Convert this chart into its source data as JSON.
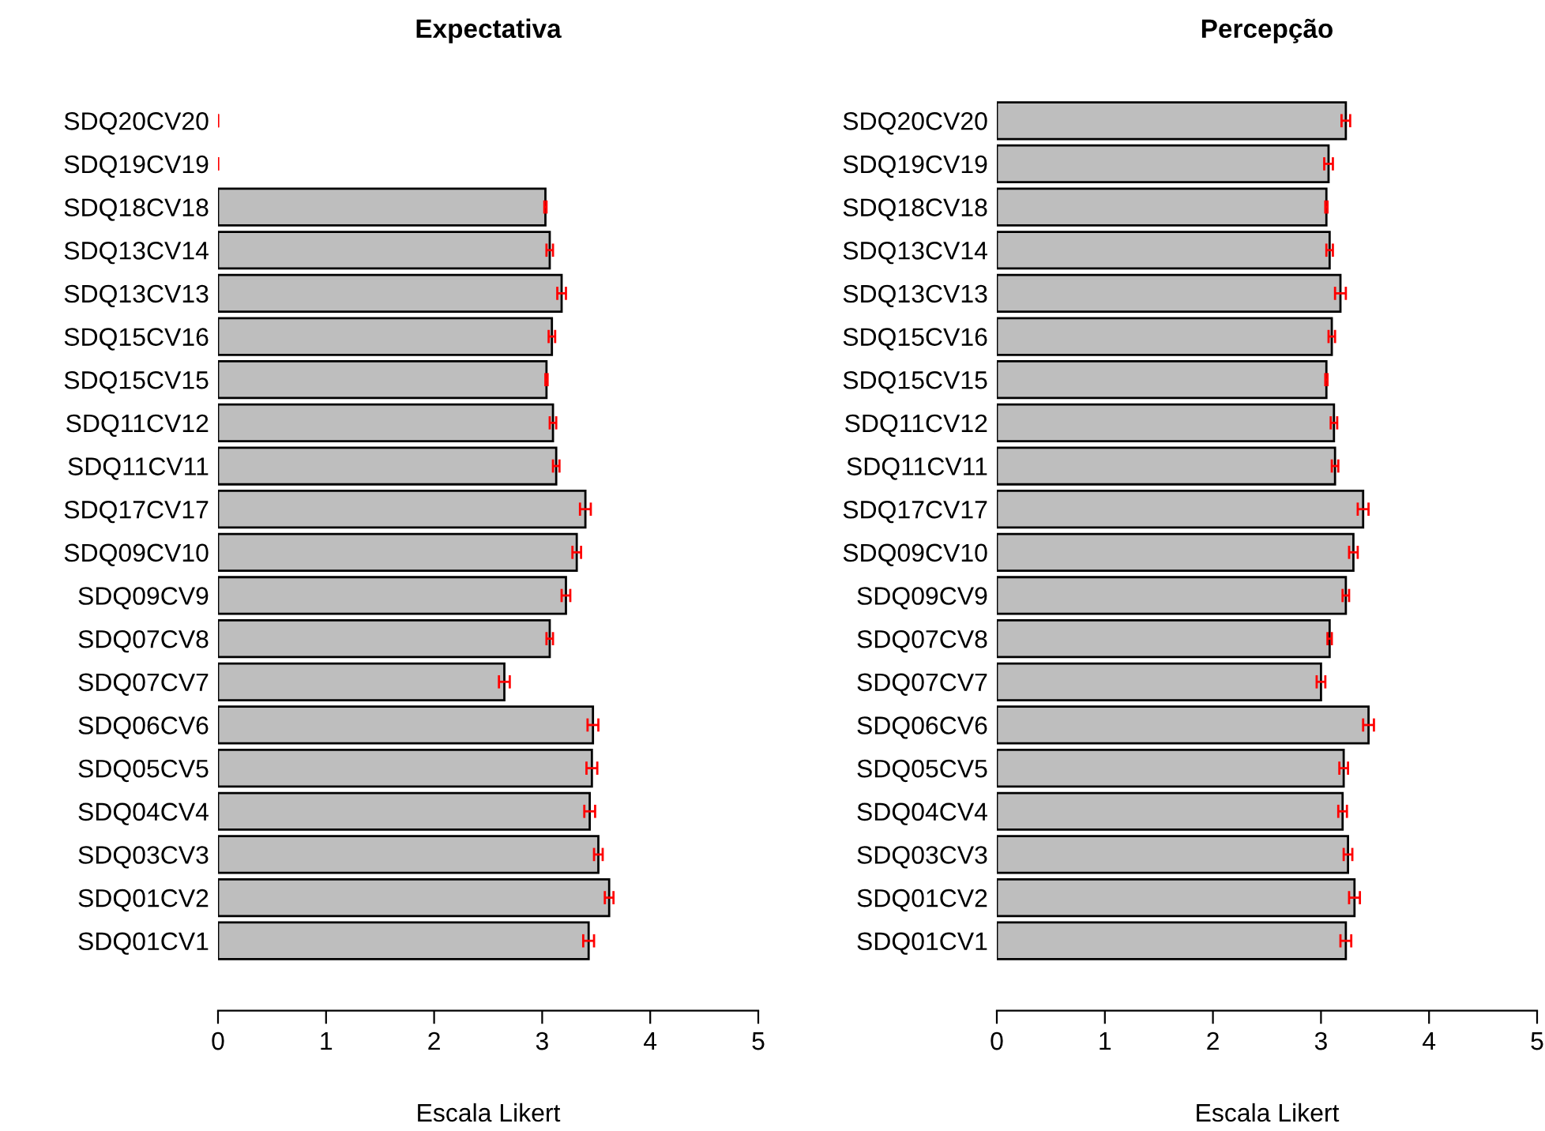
{
  "chart_data": [
    {
      "type": "bar",
      "orientation": "horizontal",
      "title": "Expectativa",
      "xlabel": "Escala Likert",
      "categories": [
        "SDQ20CV20",
        "SDQ19CV19",
        "SDQ18CV18",
        "SDQ13CV14",
        "SDQ13CV13",
        "SDQ15CV16",
        "SDQ15CV15",
        "SDQ11CV12",
        "SDQ11CV11",
        "SDQ17CV17",
        "SDQ09CV10",
        "SDQ09CV9",
        "SDQ07CV8",
        "SDQ07CV7",
        "SDQ06CV6",
        "SDQ05CV5",
        "SDQ04CV4",
        "SDQ03CV3",
        "SDQ01CV2",
        "SDQ01CV1"
      ],
      "values": [
        0,
        0,
        3.03,
        3.07,
        3.18,
        3.09,
        3.04,
        3.1,
        3.13,
        3.4,
        3.32,
        3.22,
        3.07,
        2.65,
        3.47,
        3.46,
        3.44,
        3.52,
        3.62,
        3.43
      ],
      "errors": [
        0,
        0,
        0.01,
        0.03,
        0.04,
        0.03,
        0.01,
        0.03,
        0.03,
        0.05,
        0.04,
        0.04,
        0.03,
        0.05,
        0.05,
        0.05,
        0.05,
        0.04,
        0.04,
        0.05
      ],
      "color": "#bebebe",
      "xlim": [
        0,
        5
      ],
      "xticks": [
        0,
        1,
        2,
        3,
        4,
        5
      ],
      "grid": false
    },
    {
      "type": "bar",
      "orientation": "horizontal",
      "title": "Percepção",
      "xlabel": "Escala Likert",
      "categories": [
        "SDQ20CV20",
        "SDQ19CV19",
        "SDQ18CV18",
        "SDQ13CV14",
        "SDQ13CV13",
        "SDQ15CV16",
        "SDQ15CV15",
        "SDQ11CV12",
        "SDQ11CV11",
        "SDQ17CV17",
        "SDQ09CV10",
        "SDQ09CV9",
        "SDQ07CV8",
        "SDQ07CV7",
        "SDQ06CV6",
        "SDQ05CV5",
        "SDQ04CV4",
        "SDQ03CV3",
        "SDQ01CV2",
        "SDQ01CV1"
      ],
      "values": [
        3.23,
        3.07,
        3.05,
        3.08,
        3.18,
        3.1,
        3.05,
        3.12,
        3.13,
        3.39,
        3.3,
        3.23,
        3.08,
        3.0,
        3.44,
        3.21,
        3.2,
        3.25,
        3.31,
        3.23
      ],
      "errors": [
        0.04,
        0.04,
        0.01,
        0.03,
        0.05,
        0.03,
        0.01,
        0.03,
        0.03,
        0.05,
        0.04,
        0.03,
        0.02,
        0.04,
        0.05,
        0.04,
        0.04,
        0.04,
        0.05,
        0.05
      ],
      "color": "#bebebe",
      "xlim": [
        0,
        5
      ],
      "xticks": [
        0,
        1,
        2,
        3,
        4,
        5
      ],
      "grid": false
    }
  ]
}
